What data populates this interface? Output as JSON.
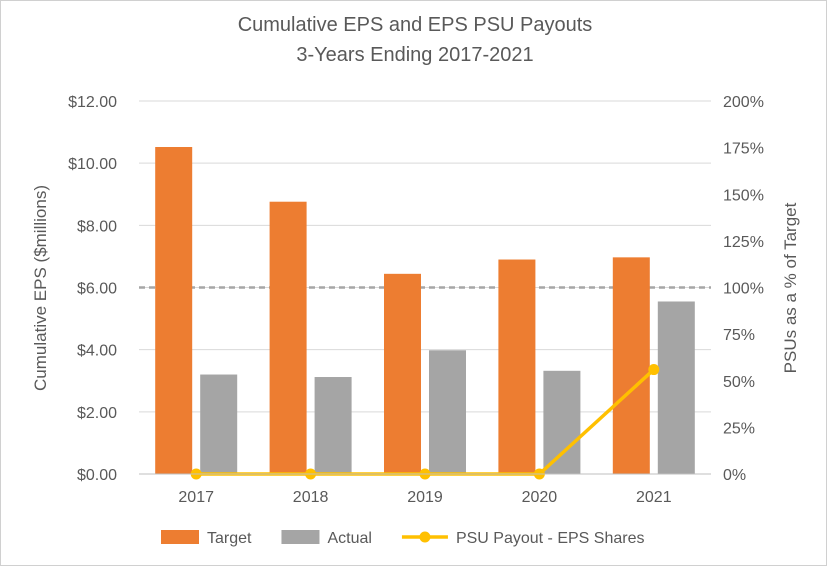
{
  "chart_data": {
    "type": "bar",
    "title": "Cumulative EPS and EPS PSU Payouts",
    "subtitle": "3-Years Ending 2017-2021",
    "categories": [
      "2017",
      "2018",
      "2019",
      "2020",
      "2021"
    ],
    "ylabel": "Cumulative EPS ($millions)",
    "y2label": "PSUs as a % of Target",
    "ylim": [
      0,
      12
    ],
    "y2lim": [
      0,
      200
    ],
    "yticks": [
      "$0.00",
      "$2.00",
      "$4.00",
      "$6.00",
      "$8.00",
      "$10.00",
      "$12.00"
    ],
    "y2ticks": [
      "0%",
      "25%",
      "50%",
      "75%",
      "100%",
      "125%",
      "150%",
      "175%",
      "200%"
    ],
    "reference_line": {
      "axis": "y2",
      "value": 100,
      "style": "dashed"
    },
    "grid": true,
    "legend_position": "bottom",
    "series": [
      {
        "name": "Target",
        "type": "bar",
        "axis": "y",
        "color": "#ED7D31",
        "values": [
          10.52,
          8.76,
          6.44,
          6.9,
          6.97
        ]
      },
      {
        "name": "Actual",
        "type": "bar",
        "axis": "y",
        "color": "#A5A5A5",
        "values": [
          3.2,
          3.12,
          3.98,
          3.32,
          5.55
        ]
      },
      {
        "name": "PSU Payout - EPS Shares",
        "type": "line",
        "axis": "y2",
        "color": "#FFC000",
        "values": [
          0,
          0,
          0,
          0,
          56
        ]
      }
    ]
  }
}
